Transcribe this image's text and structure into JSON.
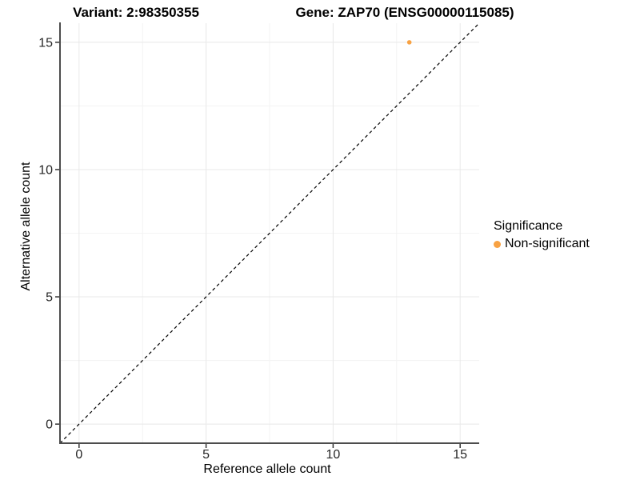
{
  "chart_data": {
    "type": "scatter",
    "title_left": "Variant: 2:98350355",
    "title_right": "Gene: ZAP70 (ENSG00000115085)",
    "xlabel": "Reference allele count",
    "ylabel": "Alternative allele count",
    "xlim": [
      -0.75,
      15.75
    ],
    "ylim": [
      -0.75,
      15.75
    ],
    "x_ticks": [
      0,
      5,
      10,
      15
    ],
    "y_ticks": [
      0,
      5,
      10,
      15
    ],
    "x_minor_ticks": [
      2.5,
      7.5,
      12.5
    ],
    "y_minor_ticks": [
      2.5,
      7.5,
      12.5
    ],
    "grid": true,
    "points": [
      {
        "x": 13,
        "y": 15,
        "series": "Non-significant"
      }
    ],
    "reference_line": {
      "type": "identity",
      "style": "dashed",
      "color": "#000000"
    },
    "legend": {
      "title": "Significance",
      "position": "right",
      "items": [
        {
          "label": "Non-significant",
          "color": "#F8A243"
        }
      ]
    },
    "colors": {
      "background": "#FFFFFF",
      "grid_major": "#E8E8E8",
      "grid_minor": "#F3F3F3",
      "axis_line": "#4D4D4D",
      "tick_mark": "#333333",
      "tick_text": "#262626",
      "text": "#000000"
    }
  }
}
